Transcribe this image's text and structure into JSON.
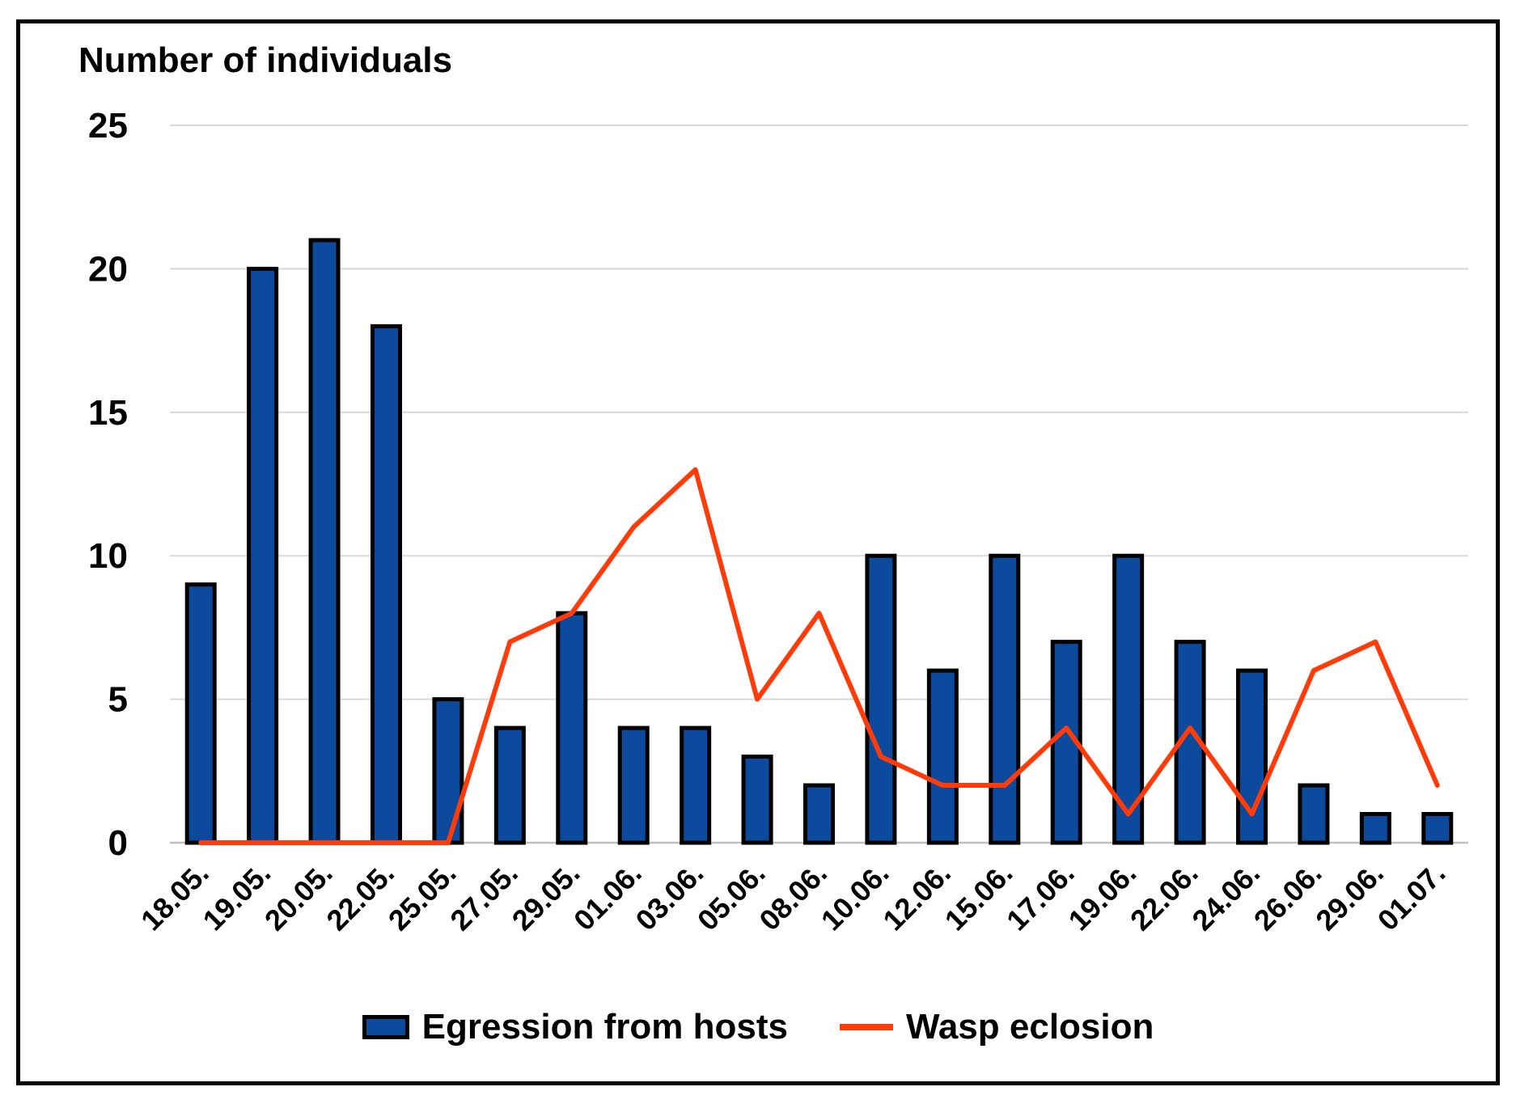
{
  "chart_data": {
    "type": "bar+line",
    "title": "",
    "ylabel": "Number of individuals",
    "xlabel": "",
    "ylim": [
      0,
      25
    ],
    "yticks": [
      0,
      5,
      10,
      15,
      20,
      25
    ],
    "grid": true,
    "categories": [
      "18.05.",
      "19.05.",
      "20.05.",
      "22.05.",
      "25.05.",
      "27.05.",
      "29.05.",
      "01.06.",
      "03.06.",
      "05.06.",
      "08.06.",
      "10.06.",
      "12.06.",
      "15.06.",
      "17.06.",
      "19.06.",
      "22.06.",
      "24.06.",
      "26.06.",
      "29.06.",
      "01.07."
    ],
    "series": [
      {
        "name": "Egression from hosts",
        "type": "bar",
        "color": "#0b4a9c",
        "values": [
          9,
          20,
          21,
          18,
          5,
          4,
          8,
          4,
          4,
          3,
          2,
          10,
          6,
          10,
          7,
          10,
          7,
          6,
          2,
          1,
          1
        ]
      },
      {
        "name": "Wasp eclosion",
        "type": "line",
        "color": "#ff3b0a",
        "values": [
          0,
          0,
          0,
          0,
          0,
          7,
          8,
          11,
          13,
          5,
          8,
          3,
          2,
          2,
          4,
          1,
          4,
          1,
          6,
          7,
          2
        ]
      }
    ],
    "legend_position": "bottom"
  }
}
